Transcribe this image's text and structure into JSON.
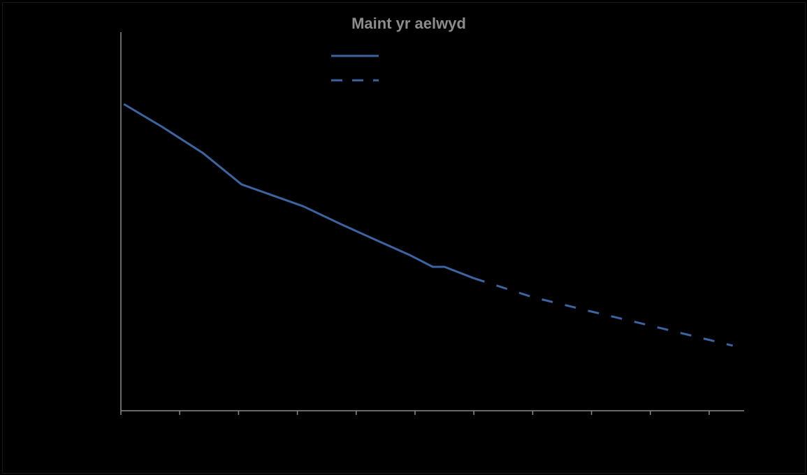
{
  "chart_data": {
    "type": "line",
    "title": "Maint yr aelwyd",
    "xlabel": "",
    "ylabel": "",
    "xlim": [
      0,
      10.5
    ],
    "ylim": [
      0,
      10
    ],
    "grid": false,
    "legend_position": "top-center",
    "series": [
      {
        "style": "solid",
        "color": "#3c64a0",
        "points": [
          {
            "x": 0.05,
            "y": 8.1
          },
          {
            "x": 0.7,
            "y": 7.5
          },
          {
            "x": 1.4,
            "y": 6.8
          },
          {
            "x": 2.05,
            "y": 5.98
          },
          {
            "x": 3.1,
            "y": 5.4
          },
          {
            "x": 3.75,
            "y": 4.92
          },
          {
            "x": 4.35,
            "y": 4.5
          },
          {
            "x": 4.9,
            "y": 4.12
          },
          {
            "x": 5.3,
            "y": 3.8
          },
          {
            "x": 5.5,
            "y": 3.8
          },
          {
            "x": 6.0,
            "y": 3.5
          }
        ]
      },
      {
        "style": "dashed",
        "color": "#3c64a0",
        "points": [
          {
            "x": 6.0,
            "y": 3.5
          },
          {
            "x": 7.0,
            "y": 3.0
          },
          {
            "x": 8.0,
            "y": 2.62
          },
          {
            "x": 9.0,
            "y": 2.25
          },
          {
            "x": 10.4,
            "y": 1.72
          }
        ]
      }
    ],
    "x_ticks": [
      0,
      1,
      2,
      3,
      4,
      5,
      6,
      7,
      8,
      9,
      10
    ],
    "colors": {
      "background": "#000000",
      "axis": "#8c8c8c",
      "line": "#3c64a0",
      "title": "#8c8c8c"
    }
  }
}
